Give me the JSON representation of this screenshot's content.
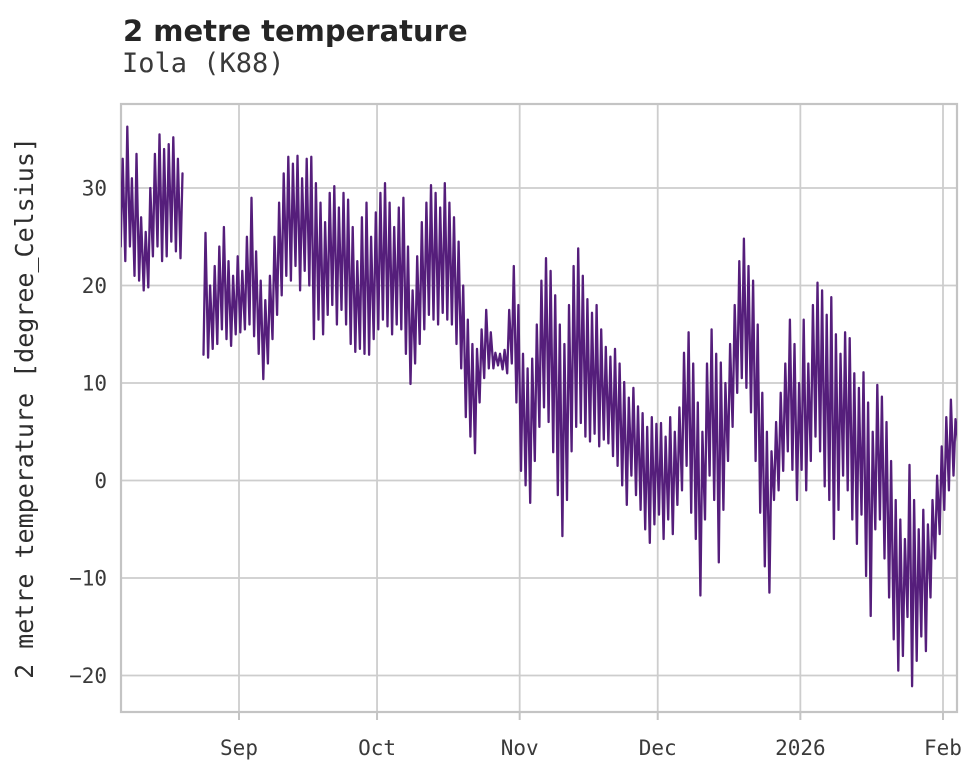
{
  "header": {
    "title": "2 metre temperature",
    "subtitle": "Iola (K88)"
  },
  "chart_data": {
    "type": "line",
    "title": "2 metre temperature",
    "subtitle": "Iola (K88)",
    "xlabel": "",
    "ylabel": "2 metre temperature [degree_Celsius]",
    "legend": "none",
    "grid": true,
    "line_color": "#551e7b",
    "grid_color": "#cdcdcd",
    "spine_color": "#c4c4c4",
    "text_color": "#3a3a3a",
    "ylim": [
      -24.5,
      38.5
    ],
    "y_ticks": {
      "values": [
        30,
        20,
        10,
        0,
        -10,
        -20
      ],
      "labels": [
        "30",
        "20",
        "10",
        "0",
        "−10",
        "−20"
      ]
    },
    "x_ticks": {
      "labels": [
        "Sep",
        "Oct",
        "Nov",
        "Dec",
        "2026",
        "Feb"
      ],
      "day_offsets": [
        26,
        56,
        87,
        117,
        148,
        179
      ]
    },
    "x_start_date": "Aug 6",
    "x_end_date": "Feb 4",
    "days_total": 183,
    "series": [
      {
        "name": "2 metre temperature",
        "unit": "degree_Celsius",
        "sampling": "daily high/low envelope (diurnal cycle), nulls = data gap Aug 20-23",
        "daily_highs": [
          33,
          36.3,
          31,
          33.5,
          27,
          25.5,
          30,
          33.5,
          35.5,
          34,
          34.5,
          35.2,
          33,
          31.5,
          null,
          null,
          null,
          null,
          25.4,
          20,
          22,
          24,
          26,
          22.5,
          21,
          23,
          21.5,
          25,
          29,
          23.5,
          20.5,
          18.5,
          21,
          25,
          28.5,
          31.5,
          33.2,
          32.5,
          33.3,
          31,
          33,
          33.2,
          30.5,
          28.5,
          26.5,
          29.5,
          30.2,
          28,
          29.5,
          28.8,
          26,
          22.5,
          27,
          28.5,
          25,
          27.5,
          29.5,
          30.5,
          28.5,
          26,
          28,
          29,
          24,
          19.5,
          23,
          26.5,
          28.5,
          30.3,
          29.5,
          28,
          30.5,
          28.5,
          27,
          24.5,
          20,
          16.5,
          14,
          13.5,
          15.5,
          17.5,
          15.2,
          13.1,
          13,
          13.4,
          17.5,
          22,
          18,
          13,
          11.5,
          12.5,
          16,
          20.5,
          22.8,
          21.5,
          19,
          16,
          14,
          18,
          22,
          23.8,
          21,
          18.6,
          17.2,
          18,
          15.5,
          13.7,
          12.7,
          13.5,
          12,
          10.1,
          8.5,
          9.5,
          7.6,
          6.9,
          5.5,
          6.5,
          5.8,
          5.9,
          4.5,
          6.5,
          5,
          7.5,
          13.1,
          15.2,
          12,
          8,
          5,
          12,
          15.5,
          13,
          12.1,
          10,
          14,
          18,
          22.5,
          24.8,
          22,
          20.5,
          16,
          9,
          5,
          3,
          6,
          9,
          12,
          16.5,
          14,
          10,
          16.5,
          12,
          18,
          20.3,
          19.5,
          17,
          18.8,
          15,
          13,
          15.2,
          14.6,
          11,
          9.5,
          11.1,
          8,
          5,
          9.8,
          8.6,
          6,
          2,
          -2,
          -4,
          -6,
          1.6,
          -2,
          -5,
          -3,
          -4.5,
          -2,
          0.5,
          3.5,
          6.5,
          8.3,
          6.3,
          8.1
        ],
        "daily_lows": [
          24,
          22.5,
          24,
          21,
          20.5,
          19.5,
          19.8,
          23,
          24,
          22.5,
          23,
          24.5,
          23.5,
          22.8,
          null,
          null,
          null,
          null,
          12.9,
          12.6,
          13.5,
          14,
          15.5,
          14.5,
          13.8,
          15,
          15.2,
          15.5,
          16,
          14.8,
          13,
          10.4,
          12,
          14.5,
          17,
          19,
          21,
          20.5,
          22,
          19.5,
          21.5,
          20,
          14.5,
          16.5,
          15,
          17,
          18,
          16,
          17.5,
          16,
          14,
          13.2,
          13.5,
          13,
          12.9,
          14.5,
          15.5,
          16.5,
          15.8,
          15,
          16,
          15.5,
          13,
          9.9,
          12,
          14,
          15.5,
          17,
          16.5,
          16,
          17.2,
          16.5,
          16,
          14,
          11.5,
          6.5,
          4.5,
          2.8,
          8,
          10.5,
          11.5,
          11.5,
          11.8,
          11.4,
          11,
          12,
          8,
          1,
          -0.5,
          -2.3,
          2,
          5.5,
          7.5,
          6,
          2.9,
          -1.5,
          -5.7,
          -2,
          3,
          5.5,
          5.9,
          4.5,
          4,
          4.8,
          3.5,
          4.2,
          3.8,
          2.5,
          1.5,
          -0.5,
          -2.5,
          0.5,
          -1.5,
          -3,
          -5,
          -6.4,
          -4.5,
          -3.5,
          -6,
          -4,
          -5.5,
          -2.5,
          -1,
          1.5,
          -3.3,
          -6,
          -11.8,
          -4,
          0.5,
          -2,
          -8.4,
          -3,
          2,
          5.5,
          9,
          10.5,
          9.5,
          7,
          2,
          -3.3,
          -8.8,
          -11.5,
          -2,
          -1,
          1,
          3,
          1.1,
          -2,
          1.1,
          -1,
          2,
          4.5,
          3,
          -0.6,
          -2,
          -6,
          -3,
          0.5,
          -1,
          -4,
          -6.5,
          -3.5,
          -9.8,
          -13.9,
          -5,
          -4,
          -8,
          -12,
          -16.3,
          -19.5,
          -18,
          -14,
          -21.1,
          -18.5,
          -16,
          -17.5,
          -12,
          -8,
          -5.5,
          -3,
          -1,
          0.5,
          4
        ]
      }
    ]
  }
}
